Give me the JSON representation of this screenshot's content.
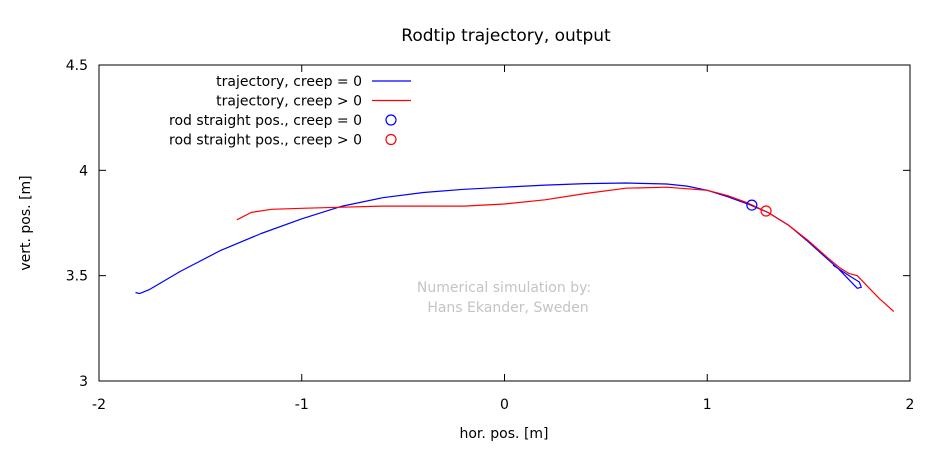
{
  "chart_data": {
    "type": "line",
    "title": "Rodtip trajectory, output",
    "xlabel": "hor. pos. [m]",
    "ylabel": "vert. pos. [m]",
    "xlim": [
      -2,
      2
    ],
    "ylim": [
      3,
      4.5
    ],
    "xticks": [
      "-2",
      "-1",
      "0",
      "1",
      "2"
    ],
    "yticks": [
      "3",
      "3.5",
      "4",
      "4.5"
    ],
    "grid": false,
    "legend_position": "top-left",
    "annotation": [
      "Numerical simulation by:",
      "Hans Ekander, Sweden"
    ],
    "series": [
      {
        "name": "trajectory, creep = 0",
        "kind": "line",
        "color": "#0000ff",
        "x": [
          -1.82,
          -1.8,
          -1.75,
          -1.6,
          -1.4,
          -1.2,
          -1.0,
          -0.8,
          -0.6,
          -0.4,
          -0.2,
          0.0,
          0.2,
          0.4,
          0.6,
          0.8,
          0.9,
          1.0,
          1.1,
          1.2,
          1.3,
          1.4,
          1.5,
          1.58,
          1.65,
          1.7,
          1.74,
          1.76,
          1.75,
          1.7,
          1.62
        ],
        "y": [
          3.42,
          3.415,
          3.435,
          3.52,
          3.62,
          3.7,
          3.77,
          3.83,
          3.87,
          3.895,
          3.91,
          3.92,
          3.93,
          3.937,
          3.94,
          3.935,
          3.925,
          3.905,
          3.875,
          3.84,
          3.8,
          3.74,
          3.66,
          3.59,
          3.53,
          3.48,
          3.44,
          3.445,
          3.47,
          3.5,
          3.55
        ]
      },
      {
        "name": "trajectory, creep > 0",
        "kind": "line",
        "color": "#ff0000",
        "x": [
          -1.32,
          -1.25,
          -1.15,
          -1.0,
          -0.8,
          -0.6,
          -0.4,
          -0.2,
          0.0,
          0.2,
          0.4,
          0.6,
          0.8,
          1.0,
          1.1,
          1.2,
          1.3,
          1.4,
          1.5,
          1.6,
          1.65,
          1.7,
          1.74,
          1.76,
          1.8,
          1.85,
          1.92
        ],
        "y": [
          3.765,
          3.8,
          3.815,
          3.82,
          3.825,
          3.83,
          3.83,
          3.83,
          3.84,
          3.86,
          3.89,
          3.915,
          3.92,
          3.905,
          3.88,
          3.845,
          3.8,
          3.74,
          3.665,
          3.58,
          3.54,
          3.51,
          3.5,
          3.48,
          3.44,
          3.39,
          3.33
        ]
      },
      {
        "name": "rod straight pos., creep = 0",
        "kind": "marker",
        "color": "#0000ff",
        "x": [
          1.22
        ],
        "y": [
          3.835
        ]
      },
      {
        "name": "rod straight pos., creep > 0",
        "kind": "marker",
        "color": "#ff0000",
        "x": [
          1.29
        ],
        "y": [
          3.807
        ]
      }
    ]
  }
}
